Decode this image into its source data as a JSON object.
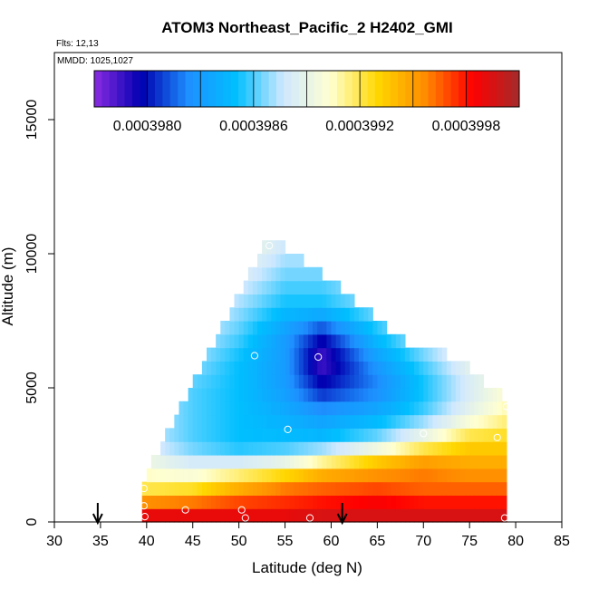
{
  "chart_data": {
    "type": "heatmap",
    "title": "ATOM3 Northeast_Pacific_2 H2402_GMI",
    "flights_text": "Flts: 12,13",
    "dates_text": "MMDD: 1025,1027",
    "xlabel": "Latitude (deg N)",
    "ylabel": "Altitude (m)",
    "xlim": [
      30,
      85
    ],
    "ylim": [
      0,
      17500
    ],
    "x_ticks": [
      30,
      35,
      40,
      45,
      50,
      55,
      60,
      65,
      70,
      75,
      80,
      85
    ],
    "y_ticks": [
      0,
      5000,
      10000,
      15000
    ],
    "colorbar": {
      "min": 0.0003977,
      "max": 0.0004001,
      "tick_values": [
        0.000398,
        0.0003986,
        0.0003992,
        0.0003998
      ],
      "tick_labels": [
        "0.0003980",
        "0.0003986",
        "0.0003992",
        "0.0003998"
      ],
      "stops": [
        "#8a2be2",
        "#0000b0",
        "#1e90ff",
        "#00bfff",
        "#cfe8ff",
        "#ffffd0",
        "#ffd700",
        "#ff8c00",
        "#ff0000",
        "#a52a2a"
      ]
    },
    "cell": {
      "lat_step": 0.5,
      "alt_step": 500
    },
    "lat_range": [
      39.5,
      79
    ],
    "envelope": {
      "lat": [
        39.5,
        53.3,
        61,
        68,
        74,
        79
      ],
      "top": [
        1200,
        10500,
        8500,
        6500,
        5800,
        4300
      ]
    },
    "field": {
      "lats": [
        39.5,
        45,
        50,
        55,
        59,
        65,
        70,
        75,
        79
      ],
      "alts": [
        0,
        500,
        1000,
        1500,
        2000,
        2500,
        3000,
        4000,
        5000,
        6000,
        7000,
        8000,
        10500
      ],
      "values": [
        [
          0.0004,
          0.0004,
          0.0004,
          0.0004,
          0.0004,
          0.0004,
          0.0004,
          0.0004,
          0.0004
        ],
        [
          0.0003998,
          0.0003998,
          0.0003998,
          0.0003998,
          0.0003999,
          0.0003999,
          0.0003999,
          0.0003999,
          0.0003999
        ],
        [
          0.0003993,
          0.0003994,
          0.0003996,
          0.0003997,
          0.0003997,
          0.0003998,
          0.0003997,
          0.0003997,
          0.0003997
        ],
        [
          0.0003991,
          0.0003991,
          0.0003993,
          0.0003995,
          0.0003996,
          0.0003996,
          0.0003996,
          0.0003996,
          0.0003996
        ],
        [
          0.000399,
          0.0003989,
          0.000399,
          0.0003991,
          0.0003993,
          0.0003995,
          0.0003996,
          0.0003995,
          0.0003995
        ],
        [
          0.0003989,
          0.0003987,
          0.0003986,
          0.0003987,
          0.0003989,
          0.0003992,
          0.0003994,
          0.0003994,
          0.0003994
        ],
        [
          0.0003988,
          0.0003986,
          0.0003985,
          0.0003985,
          0.0003985,
          0.0003987,
          0.000399,
          0.0003993,
          0.0003993
        ],
        [
          0.0003988,
          0.0003986,
          0.0003985,
          0.0003984,
          0.0003983,
          0.0003984,
          0.0003986,
          0.0003989,
          0.0003991
        ],
        [
          0.0003988,
          0.0003986,
          0.0003985,
          0.0003983,
          0.000398,
          0.0003982,
          0.0003985,
          0.0003988,
          0.000399
        ],
        [
          0.0003988,
          0.0003987,
          0.0003985,
          0.0003983,
          0.0003978,
          0.0003983,
          0.0003986,
          0.0003989,
          0.000399
        ],
        [
          0.0003989,
          0.0003988,
          0.0003986,
          0.0003983,
          0.000398,
          0.0003985,
          0.0003988,
          0.000399,
          0.000399
        ],
        [
          0.000399,
          0.0003989,
          0.0003987,
          0.0003985,
          0.0003985,
          0.0003987,
          0.0003989,
          0.000399,
          0.000399
        ],
        [
          0.0003992,
          0.0003992,
          0.000399,
          0.0003988,
          0.0003988,
          0.0003989,
          0.000399,
          0.000399,
          0.000399
        ]
      ]
    },
    "sample_points": [
      {
        "lat": 39.7,
        "alt": 1250
      },
      {
        "lat": 39.7,
        "alt": 600
      },
      {
        "lat": 39.8,
        "alt": 200
      },
      {
        "lat": 44.2,
        "alt": 450
      },
      {
        "lat": 50.3,
        "alt": 450
      },
      {
        "lat": 50.7,
        "alt": 150
      },
      {
        "lat": 51.7,
        "alt": 6200
      },
      {
        "lat": 53.3,
        "alt": 10300
      },
      {
        "lat": 55.3,
        "alt": 3450
      },
      {
        "lat": 57.7,
        "alt": 150
      },
      {
        "lat": 58.6,
        "alt": 6150
      },
      {
        "lat": 70.0,
        "alt": 3300
      },
      {
        "lat": 78.0,
        "alt": 3150
      },
      {
        "lat": 78.8,
        "alt": 150
      },
      {
        "lat": 79.0,
        "alt": 4300
      }
    ],
    "arrows": [
      34.7,
      61.2
    ]
  }
}
